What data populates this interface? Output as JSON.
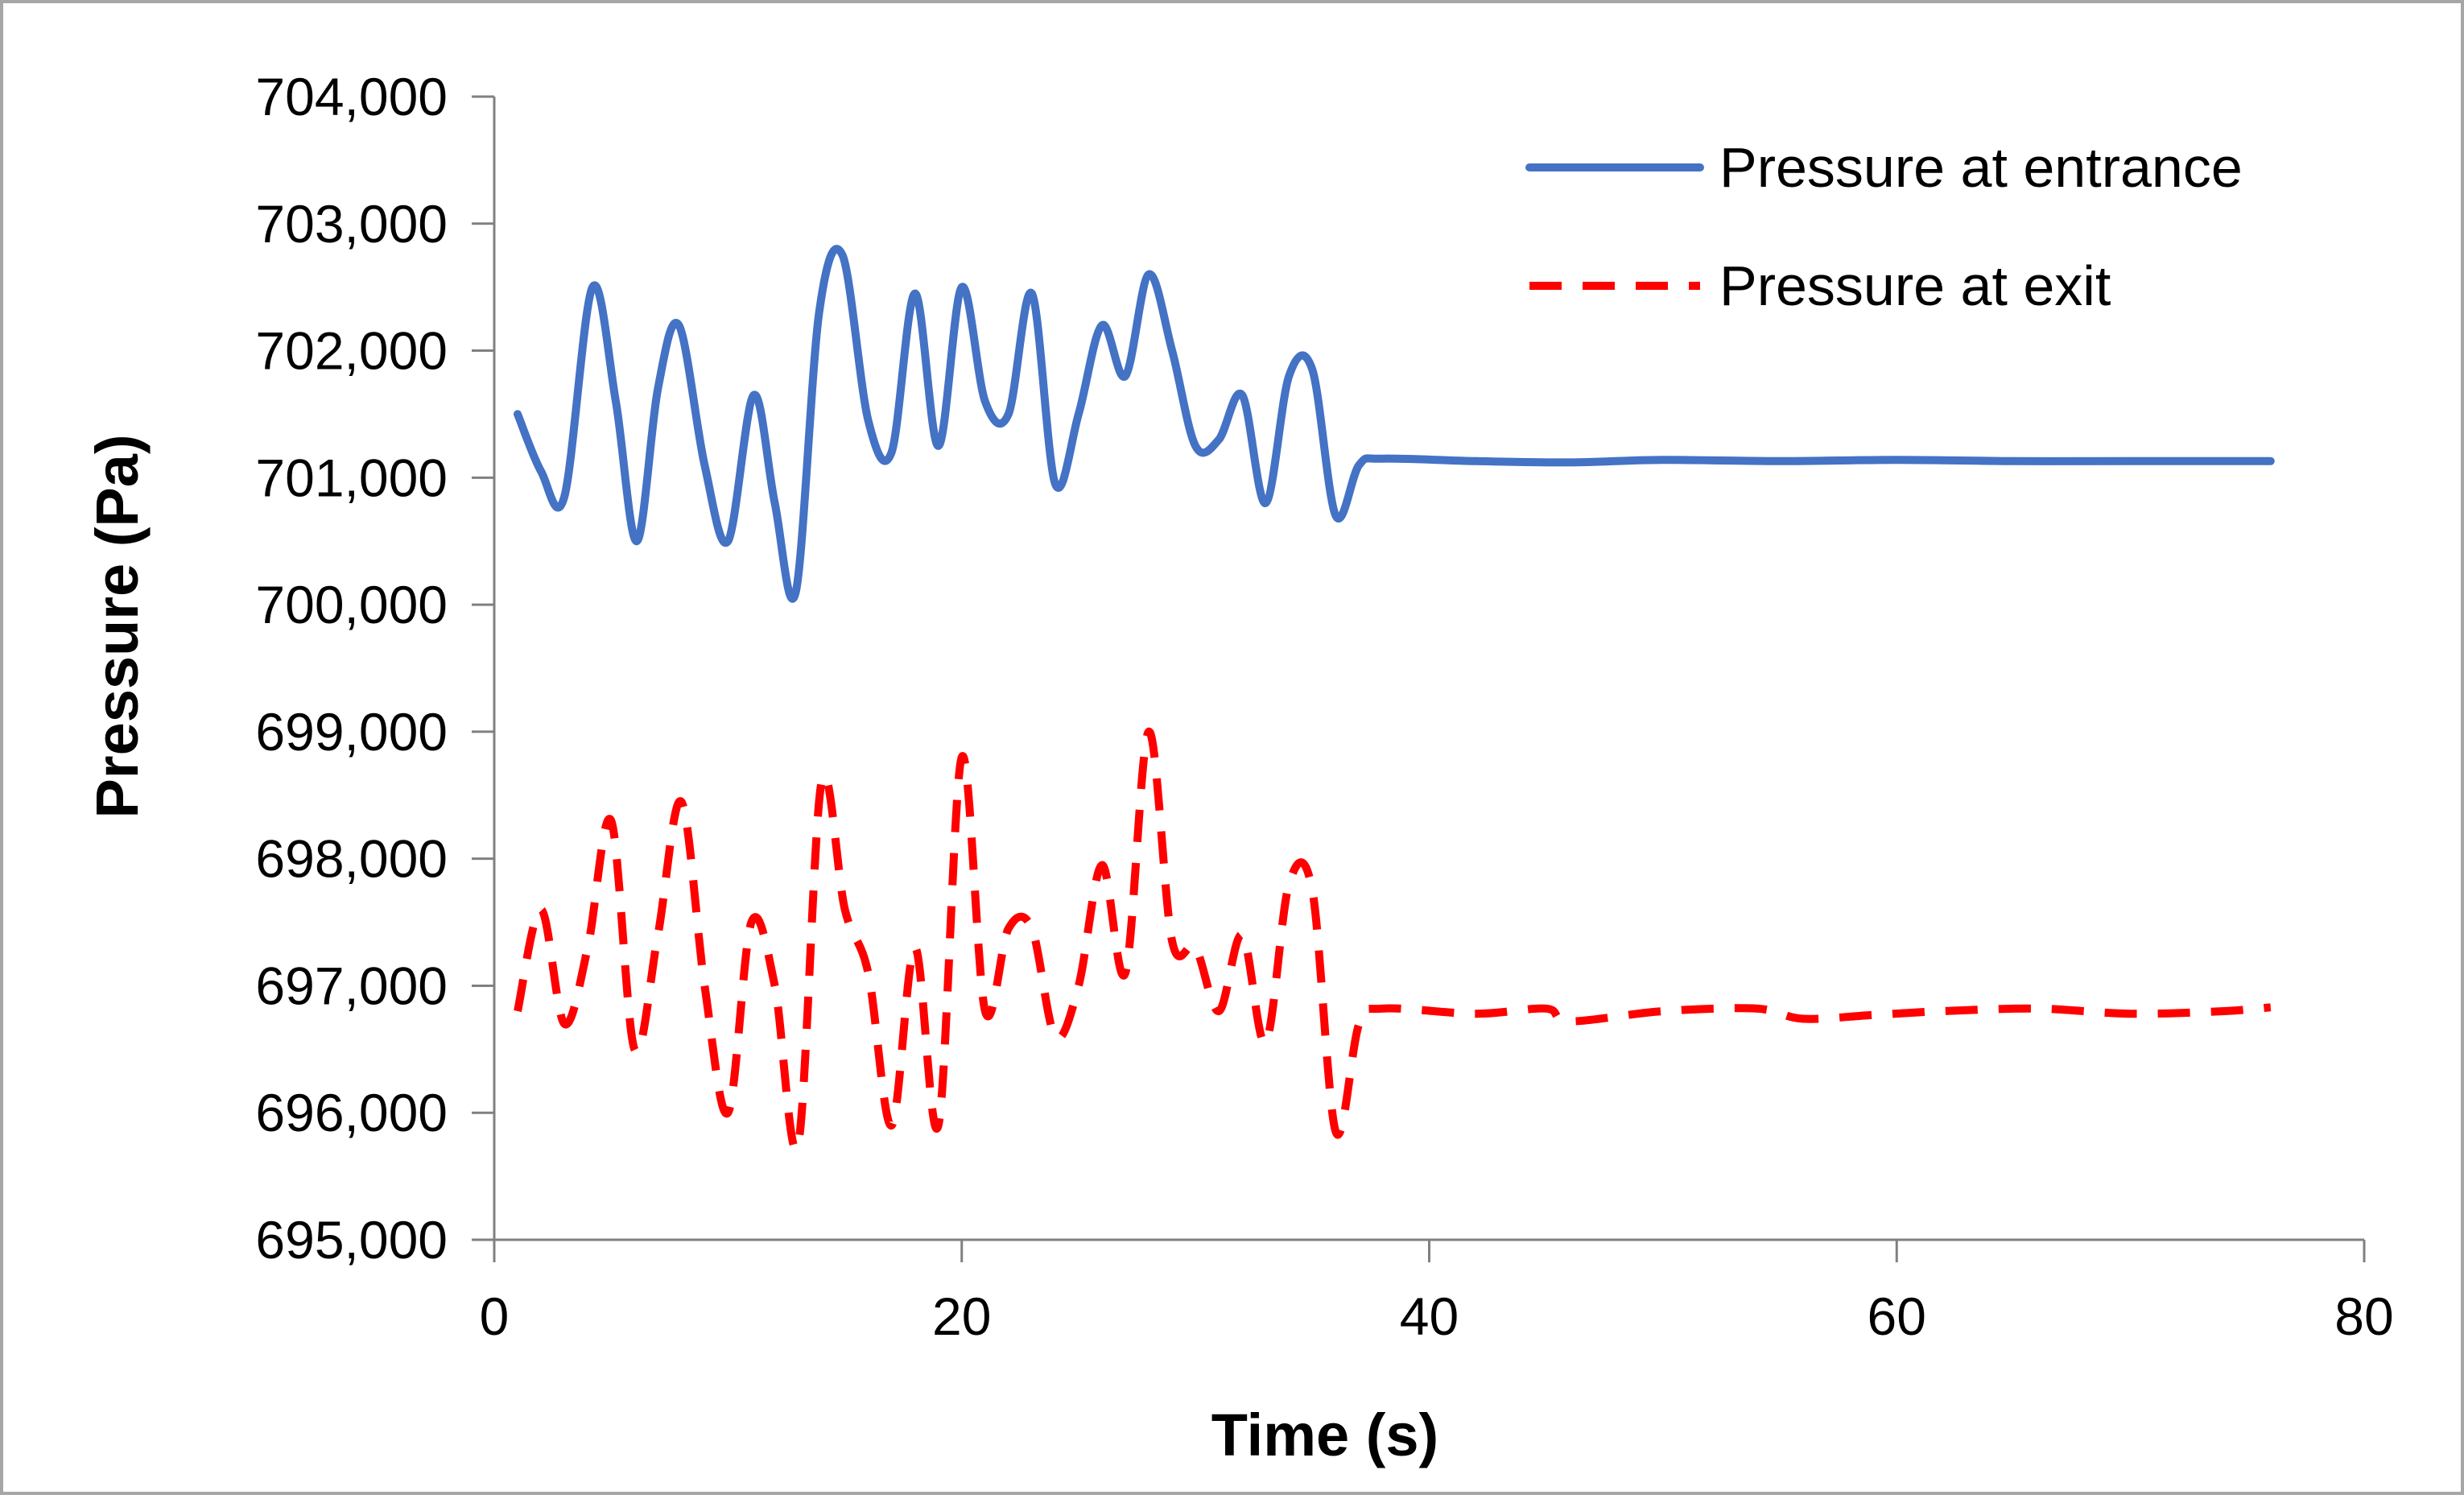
{
  "chart_data": {
    "type": "line",
    "title": "",
    "xlabel": "Time (s)",
    "ylabel": "Pressure (Pa)",
    "xlim": [
      0,
      80
    ],
    "ylim": [
      695000,
      704000
    ],
    "x_ticks": [
      {
        "value": 0,
        "label": "0"
      },
      {
        "value": 20,
        "label": "20"
      },
      {
        "value": 40,
        "label": "40"
      },
      {
        "value": 60,
        "label": "60"
      },
      {
        "value": 80,
        "label": "80"
      }
    ],
    "y_ticks": [
      {
        "value": 695000,
        "label": "695,000"
      },
      {
        "value": 696000,
        "label": "696,000"
      },
      {
        "value": 697000,
        "label": "697,000"
      },
      {
        "value": 698000,
        "label": "698,000"
      },
      {
        "value": 699000,
        "label": "699,000"
      },
      {
        "value": 700000,
        "label": "700,000"
      },
      {
        "value": 701000,
        "label": "701,000"
      },
      {
        "value": 702000,
        "label": "702,000"
      },
      {
        "value": 703000,
        "label": "703,000"
      },
      {
        "value": 704000,
        "label": "704,000"
      }
    ],
    "grid": false,
    "legend_position": "top-right",
    "series": [
      {
        "name": "Pressure at entrance",
        "color": "#4472C4",
        "dash": "solid",
        "points": [
          [
            1,
            701500
          ],
          [
            2,
            701050
          ],
          [
            3,
            700850
          ],
          [
            4.2,
            702500
          ],
          [
            5.2,
            701600
          ],
          [
            6.1,
            700500
          ],
          [
            7,
            701700
          ],
          [
            7.9,
            702200
          ],
          [
            9,
            701100
          ],
          [
            10,
            700500
          ],
          [
            11.1,
            701650
          ],
          [
            12,
            700800
          ],
          [
            12.9,
            700100
          ],
          [
            13.9,
            702300
          ],
          [
            14.9,
            702750
          ],
          [
            16,
            701450
          ],
          [
            17,
            701200
          ],
          [
            18,
            702450
          ],
          [
            19,
            701250
          ],
          [
            20,
            702500
          ],
          [
            21,
            701600
          ],
          [
            22,
            701500
          ],
          [
            23,
            702450
          ],
          [
            24,
            700950
          ],
          [
            25,
            701500
          ],
          [
            26,
            702200
          ],
          [
            27,
            701800
          ],
          [
            28,
            702600
          ],
          [
            29,
            702000
          ],
          [
            30,
            701250
          ],
          [
            31,
            701300
          ],
          [
            32,
            701650
          ],
          [
            33,
            700800
          ],
          [
            34,
            701800
          ],
          [
            35,
            701850
          ],
          [
            36,
            700700
          ],
          [
            37,
            701100
          ],
          [
            38,
            701150
          ],
          [
            42,
            701130
          ],
          [
            46,
            701120
          ],
          [
            50,
            701140
          ],
          [
            55,
            701130
          ],
          [
            60,
            701140
          ],
          [
            65,
            701130
          ],
          [
            70,
            701130
          ],
          [
            76,
            701130
          ]
        ]
      },
      {
        "name": "Pressure at exit",
        "color": "#FF0000",
        "dash": "dashed",
        "points": [
          [
            1,
            696800
          ],
          [
            2,
            697600
          ],
          [
            3,
            696700
          ],
          [
            4,
            697300
          ],
          [
            5,
            698300
          ],
          [
            6,
            696500
          ],
          [
            7,
            697400
          ],
          [
            8,
            698450
          ],
          [
            9,
            697000
          ],
          [
            10,
            696000
          ],
          [
            11,
            697500
          ],
          [
            12,
            697000
          ],
          [
            13,
            695750
          ],
          [
            14,
            698600
          ],
          [
            15,
            697600
          ],
          [
            16,
            697100
          ],
          [
            17,
            695900
          ],
          [
            18,
            697300
          ],
          [
            19,
            695900
          ],
          [
            20,
            698800
          ],
          [
            21,
            696800
          ],
          [
            22,
            697450
          ],
          [
            23,
            697450
          ],
          [
            24,
            696600
          ],
          [
            25,
            697000
          ],
          [
            26,
            697950
          ],
          [
            27,
            697100
          ],
          [
            28,
            699000
          ],
          [
            29,
            697350
          ],
          [
            30,
            697300
          ],
          [
            31,
            696800
          ],
          [
            32,
            697400
          ],
          [
            33,
            696550
          ],
          [
            34,
            697800
          ],
          [
            35,
            697750
          ],
          [
            36,
            695850
          ],
          [
            37,
            696700
          ],
          [
            38,
            696820
          ],
          [
            42,
            696780
          ],
          [
            45,
            696820
          ],
          [
            46,
            696720
          ],
          [
            50,
            696800
          ],
          [
            54,
            696820
          ],
          [
            56,
            696740
          ],
          [
            59,
            696770
          ],
          [
            62,
            696800
          ],
          [
            66,
            696820
          ],
          [
            70,
            696780
          ],
          [
            74,
            696800
          ],
          [
            76,
            696830
          ]
        ]
      }
    ]
  }
}
